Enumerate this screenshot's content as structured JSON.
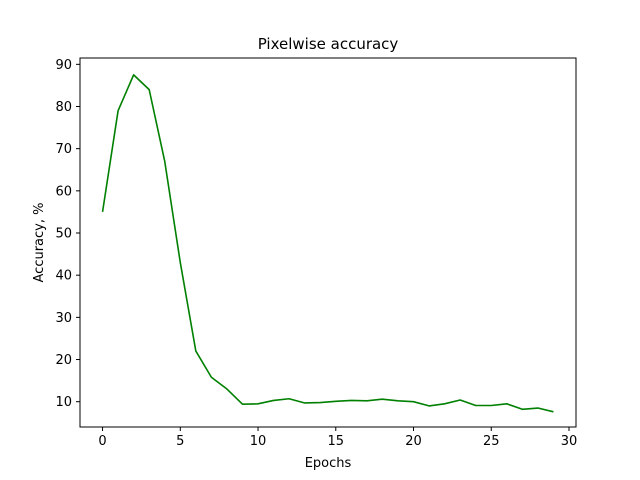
{
  "chart_data": {
    "type": "line",
    "title": "Pixelwise accuracy",
    "xlabel": "Epochs",
    "ylabel": "Accuracy, %",
    "xlim": [
      -1.45,
      30.45
    ],
    "ylim": [
      4.0,
      91.5
    ],
    "xticks": [
      0,
      5,
      10,
      15,
      20,
      25,
      30
    ],
    "yticks": [
      10,
      20,
      30,
      40,
      50,
      60,
      70,
      80,
      90
    ],
    "grid": false,
    "series": [
      {
        "color": "#008000",
        "x": [
          0,
          1,
          2,
          3,
          4,
          5,
          6,
          7,
          8,
          9,
          10,
          11,
          12,
          13,
          14,
          15,
          16,
          17,
          18,
          19,
          20,
          21,
          22,
          23,
          24,
          25,
          26,
          27,
          28,
          29
        ],
        "y": [
          55.0,
          79.0,
          87.5,
          84.0,
          67.0,
          43.0,
          22.0,
          15.8,
          13.0,
          9.4,
          9.5,
          10.3,
          10.7,
          9.7,
          9.8,
          10.1,
          10.3,
          10.2,
          10.6,
          10.2,
          10.0,
          9.0,
          9.5,
          10.4,
          9.1,
          9.1,
          9.5,
          8.2,
          8.5,
          7.6
        ]
      }
    ]
  }
}
